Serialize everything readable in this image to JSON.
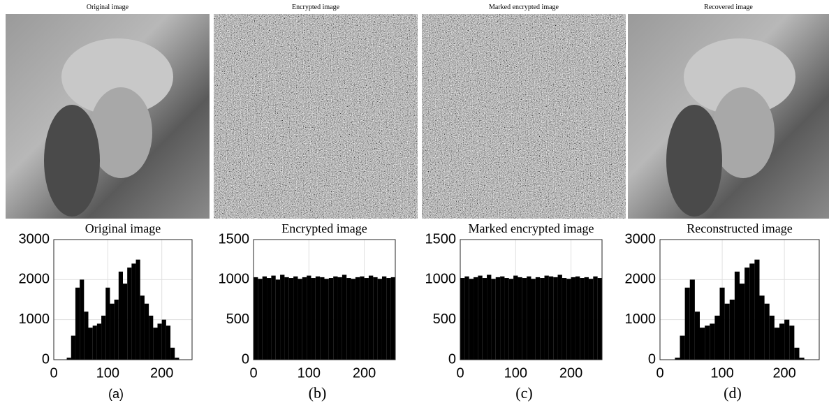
{
  "images": [
    {
      "title": "Original image"
    },
    {
      "title": "Encrypted image"
    },
    {
      "title": "Marked encrypted image"
    },
    {
      "title": "Recovered image"
    }
  ],
  "chart_data": [
    {
      "type": "histogram",
      "title": "Original image",
      "panel_label": "(a)",
      "color": "#000000",
      "grid": true,
      "bins": [
        0,
        8,
        16,
        24,
        32,
        40,
        48,
        56,
        64,
        72,
        80,
        88,
        96,
        104,
        112,
        120,
        128,
        136,
        144,
        152,
        160,
        168,
        176,
        184,
        192,
        200,
        208,
        216,
        224,
        232,
        240,
        248,
        256
      ],
      "values": [
        0,
        0,
        0,
        50,
        600,
        1800,
        2000,
        1200,
        800,
        850,
        900,
        1100,
        1800,
        1400,
        1500,
        2200,
        1900,
        2300,
        2400,
        2500,
        1600,
        1400,
        1100,
        800,
        900,
        1000,
        850,
        300,
        50,
        0,
        0,
        0
      ],
      "xlim": [
        0,
        256
      ],
      "xticks": [
        0,
        100,
        200
      ],
      "ylim": [
        0,
        3000
      ],
      "yticks": [
        0,
        1000,
        2000,
        3000
      ]
    },
    {
      "type": "histogram",
      "title": "Encrypted image",
      "panel_label": "(b)",
      "color": "#000000",
      "grid": true,
      "bins": [
        0,
        8,
        16,
        24,
        32,
        40,
        48,
        56,
        64,
        72,
        80,
        88,
        96,
        104,
        112,
        120,
        128,
        136,
        144,
        152,
        160,
        168,
        176,
        184,
        192,
        200,
        208,
        216,
        224,
        232,
        240,
        248,
        256
      ],
      "values": [
        1030,
        1010,
        1040,
        1020,
        1050,
        1000,
        1060,
        1030,
        1020,
        1040,
        1010,
        1030,
        1050,
        1020,
        1040,
        1030,
        1010,
        1020,
        1040,
        1030,
        1060,
        1020,
        1010,
        1030,
        1040,
        1020,
        1050,
        1030,
        1010,
        1040,
        1020,
        1030
      ],
      "xlim": [
        0,
        256
      ],
      "xticks": [
        0,
        100,
        200
      ],
      "ylim": [
        0,
        1500
      ],
      "yticks": [
        0,
        500,
        1000,
        1500
      ]
    },
    {
      "type": "histogram",
      "title": "Marked encrypted image",
      "panel_label": "(c)",
      "color": "#000000",
      "grid": true,
      "bins": [
        0,
        8,
        16,
        24,
        32,
        40,
        48,
        56,
        64,
        72,
        80,
        88,
        96,
        104,
        112,
        120,
        128,
        136,
        144,
        152,
        160,
        168,
        176,
        184,
        192,
        200,
        208,
        216,
        224,
        232,
        240,
        248,
        256
      ],
      "values": [
        1020,
        1040,
        1010,
        1030,
        1050,
        1020,
        1060,
        1010,
        1030,
        1040,
        1020,
        1010,
        1050,
        1030,
        1020,
        1040,
        1010,
        1030,
        1020,
        1050,
        1040,
        1030,
        1060,
        1020,
        1010,
        1030,
        1040,
        1020,
        1030,
        1010,
        1040,
        1020
      ],
      "xlim": [
        0,
        256
      ],
      "xticks": [
        0,
        100,
        200
      ],
      "ylim": [
        0,
        1500
      ],
      "yticks": [
        0,
        500,
        1000,
        1500
      ]
    },
    {
      "type": "histogram",
      "title": "Reconstructed image",
      "panel_label": "(d)",
      "color": "#000000",
      "grid": true,
      "bins": [
        0,
        8,
        16,
        24,
        32,
        40,
        48,
        56,
        64,
        72,
        80,
        88,
        96,
        104,
        112,
        120,
        128,
        136,
        144,
        152,
        160,
        168,
        176,
        184,
        192,
        200,
        208,
        216,
        224,
        232,
        240,
        248,
        256
      ],
      "values": [
        0,
        0,
        0,
        50,
        600,
        1800,
        2000,
        1200,
        800,
        850,
        900,
        1100,
        1800,
        1400,
        1500,
        2200,
        1900,
        2300,
        2400,
        2500,
        1600,
        1400,
        1100,
        800,
        900,
        1000,
        850,
        300,
        50,
        0,
        0,
        0
      ],
      "xlim": [
        0,
        256
      ],
      "xticks": [
        0,
        100,
        200
      ],
      "ylim": [
        0,
        3000
      ],
      "yticks": [
        0,
        1000,
        2000,
        3000
      ]
    }
  ]
}
